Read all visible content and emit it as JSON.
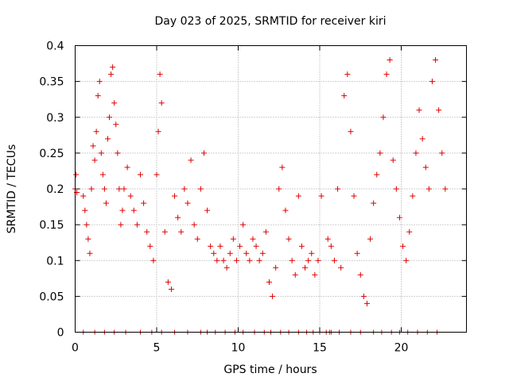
{
  "chart_data": {
    "type": "scatter",
    "title": "Day 023 of 2025, SRMTID for receiver kiri",
    "xlabel": "GPS time / hours",
    "ylabel": "SRMTID / TECUs",
    "xlim": [
      0,
      24
    ],
    "ylim": [
      0,
      0.4
    ],
    "xticks": [
      0,
      5,
      10,
      15,
      20
    ],
    "xtick_labels": [
      "0",
      "5",
      "10",
      "15",
      "20"
    ],
    "yticks": [
      0,
      0.05,
      0.1,
      0.15,
      0.2,
      0.25,
      0.3,
      0.35,
      0.4
    ],
    "ytick_labels": [
      "0",
      "0.05",
      "0.1",
      "0.15",
      "0.2",
      "0.25",
      "0.3",
      "0.35",
      "0.4"
    ],
    "grid": true,
    "marker": "plus",
    "color": "#dd0000",
    "series": [
      {
        "name": "SRMTID",
        "x": [
          0.0,
          0.05,
          0.1,
          0.5,
          0.6,
          0.7,
          0.8,
          0.9,
          1.0,
          1.1,
          1.2,
          1.3,
          1.4,
          1.5,
          1.6,
          1.7,
          1.8,
          1.9,
          2.0,
          2.1,
          2.2,
          2.3,
          2.4,
          2.5,
          2.6,
          2.7,
          2.8,
          2.9,
          3.0,
          3.2,
          3.4,
          3.6,
          3.8,
          4.0,
          4.2,
          4.4,
          4.6,
          4.8,
          5.0,
          5.1,
          5.2,
          5.3,
          5.5,
          5.7,
          5.9,
          6.1,
          6.3,
          6.5,
          6.7,
          6.9,
          7.1,
          7.3,
          7.5,
          7.7,
          7.9,
          8.1,
          8.3,
          8.5,
          8.7,
          8.9,
          9.1,
          9.3,
          9.5,
          9.7,
          9.9,
          10.1,
          10.3,
          10.5,
          10.7,
          10.9,
          11.1,
          11.3,
          11.5,
          11.7,
          11.9,
          12.1,
          12.3,
          12.5,
          12.7,
          12.9,
          13.1,
          13.3,
          13.5,
          13.7,
          13.9,
          14.1,
          14.3,
          14.5,
          14.7,
          14.9,
          15.1,
          15.5,
          15.7,
          15.9,
          16.1,
          16.3,
          16.5,
          16.7,
          16.9,
          17.1,
          17.3,
          17.5,
          17.7,
          17.9,
          18.1,
          18.3,
          18.5,
          18.7,
          18.9,
          19.1,
          19.3,
          19.5,
          19.7,
          19.9,
          20.1,
          20.3,
          20.5,
          20.7,
          20.9,
          21.1,
          21.3,
          21.5,
          21.7,
          21.9,
          22.1,
          22.3,
          22.5,
          22.7
        ],
        "y": [
          0.2,
          0.22,
          0.195,
          0.19,
          0.17,
          0.15,
          0.13,
          0.11,
          0.2,
          0.26,
          0.24,
          0.28,
          0.33,
          0.35,
          0.25,
          0.22,
          0.2,
          0.18,
          0.27,
          0.3,
          0.36,
          0.37,
          0.32,
          0.29,
          0.25,
          0.2,
          0.15,
          0.17,
          0.2,
          0.23,
          0.19,
          0.17,
          0.15,
          0.22,
          0.18,
          0.14,
          0.12,
          0.1,
          0.22,
          0.28,
          0.36,
          0.32,
          0.14,
          0.07,
          0.06,
          0.19,
          0.16,
          0.14,
          0.2,
          0.18,
          0.24,
          0.15,
          0.13,
          0.2,
          0.25,
          0.17,
          0.12,
          0.11,
          0.1,
          0.12,
          0.1,
          0.09,
          0.11,
          0.13,
          0.1,
          0.12,
          0.15,
          0.11,
          0.1,
          0.13,
          0.12,
          0.1,
          0.11,
          0.14,
          0.07,
          0.05,
          0.09,
          0.2,
          0.23,
          0.17,
          0.13,
          0.1,
          0.08,
          0.19,
          0.12,
          0.09,
          0.1,
          0.11,
          0.08,
          0.1,
          0.19,
          0.13,
          0.12,
          0.1,
          0.2,
          0.09,
          0.33,
          0.36,
          0.28,
          0.19,
          0.11,
          0.08,
          0.05,
          0.04,
          0.13,
          0.18,
          0.22,
          0.25,
          0.3,
          0.36,
          0.38,
          0.24,
          0.2,
          0.16,
          0.12,
          0.1,
          0.14,
          0.19,
          0.25,
          0.31,
          0.27,
          0.23,
          0.2,
          0.35,
          0.38,
          0.31,
          0.25,
          0.2
        ]
      }
    ],
    "zero_marks_x": [
      0.5,
      1.2,
      1.8,
      2.4,
      3.1,
      4.0,
      4.7,
      5.3,
      6.1,
      6.9,
      7.7,
      8.1,
      8.6,
      9.2,
      9.8,
      10.3,
      11.0,
      11.6,
      12.0,
      12.6,
      13.1,
      13.7,
      14.2,
      14.6,
      15.0,
      15.4,
      15.6,
      15.7,
      16.2,
      16.9,
      17.5,
      18.3,
      18.8,
      19.4,
      19.9,
      20.4,
      21.0,
      21.6,
      22.2
    ]
  }
}
